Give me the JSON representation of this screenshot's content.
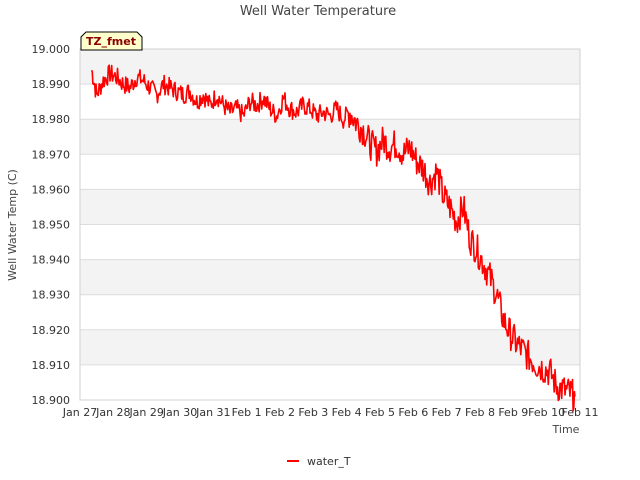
{
  "chart_data": {
    "type": "line",
    "title": "Well Water Temperature",
    "xlabel": "Time",
    "ylabel": "Well Water Temp (C)",
    "badge": "TZ_fmet",
    "ylim": [
      18.9,
      19.0
    ],
    "y_ticks": [
      "18.900",
      "18.910",
      "18.920",
      "18.930",
      "18.940",
      "18.950",
      "18.960",
      "18.970",
      "18.980",
      "18.990",
      "19.000"
    ],
    "x_range_days": [
      0,
      15
    ],
    "x_ticks": [
      "Jan 27",
      "Jan 28",
      "Jan 29",
      "Jan 30",
      "Jan 31",
      "Feb 1",
      "Feb 2",
      "Feb 3",
      "Feb 4",
      "Feb 5",
      "Feb 6",
      "Feb 7",
      "Feb 8",
      "Feb 9",
      "Feb 10",
      "Feb 11"
    ],
    "grid": true,
    "legend_position": "bottom-center",
    "series": [
      {
        "name": "water_T",
        "color": "#ff0000",
        "points": [
          [
            0.35,
            18.994
          ],
          [
            0.5,
            18.987
          ],
          [
            0.7,
            18.991
          ],
          [
            0.9,
            18.993
          ],
          [
            1.1,
            18.992
          ],
          [
            1.3,
            18.99
          ],
          [
            1.5,
            18.989
          ],
          [
            1.7,
            18.992
          ],
          [
            1.9,
            18.991
          ],
          [
            2.1,
            18.989
          ],
          [
            2.3,
            18.987
          ],
          [
            2.5,
            18.99
          ],
          [
            2.7,
            18.989
          ],
          [
            2.9,
            18.988
          ],
          [
            3.1,
            18.987
          ],
          [
            3.3,
            18.988
          ],
          [
            3.5,
            18.985
          ],
          [
            3.7,
            18.987
          ],
          [
            3.9,
            18.984
          ],
          [
            4.1,
            18.987
          ],
          [
            4.3,
            18.984
          ],
          [
            4.5,
            18.982
          ],
          [
            4.7,
            18.983
          ],
          [
            4.9,
            18.981
          ],
          [
            5.1,
            18.985
          ],
          [
            5.3,
            18.984
          ],
          [
            5.5,
            18.986
          ],
          [
            5.7,
            18.983
          ],
          [
            5.9,
            18.981
          ],
          [
            6.1,
            18.986
          ],
          [
            6.3,
            18.983
          ],
          [
            6.5,
            18.982
          ],
          [
            6.7,
            18.984
          ],
          [
            6.9,
            18.983
          ],
          [
            7.1,
            18.981
          ],
          [
            7.3,
            18.982
          ],
          [
            7.5,
            18.981
          ],
          [
            7.7,
            18.983
          ],
          [
            7.9,
            18.98
          ],
          [
            8.1,
            18.982
          ],
          [
            8.3,
            18.979
          ],
          [
            8.5,
            18.977
          ],
          [
            8.7,
            18.973
          ],
          [
            8.9,
            18.971
          ],
          [
            9.1,
            18.974
          ],
          [
            9.3,
            18.972
          ],
          [
            9.5,
            18.973
          ],
          [
            9.7,
            18.97
          ],
          [
            9.9,
            18.972
          ],
          [
            10.1,
            18.968
          ],
          [
            10.3,
            18.966
          ],
          [
            10.5,
            18.962
          ],
          [
            10.7,
            18.965
          ],
          [
            10.9,
            18.958
          ],
          [
            11.1,
            18.955
          ],
          [
            11.3,
            18.951
          ],
          [
            11.5,
            18.955
          ],
          [
            11.7,
            18.946
          ],
          [
            11.9,
            18.943
          ],
          [
            12.1,
            18.939
          ],
          [
            12.3,
            18.935
          ],
          [
            12.5,
            18.93
          ],
          [
            12.7,
            18.923
          ],
          [
            12.9,
            18.919
          ],
          [
            13.1,
            18.916
          ],
          [
            13.3,
            18.914
          ],
          [
            13.5,
            18.912
          ],
          [
            13.7,
            18.91
          ],
          [
            13.9,
            18.909
          ],
          [
            14.1,
            18.908
          ],
          [
            14.3,
            18.904
          ],
          [
            14.5,
            18.903
          ],
          [
            14.7,
            18.902
          ],
          [
            14.85,
            18.901
          ]
        ]
      }
    ]
  }
}
